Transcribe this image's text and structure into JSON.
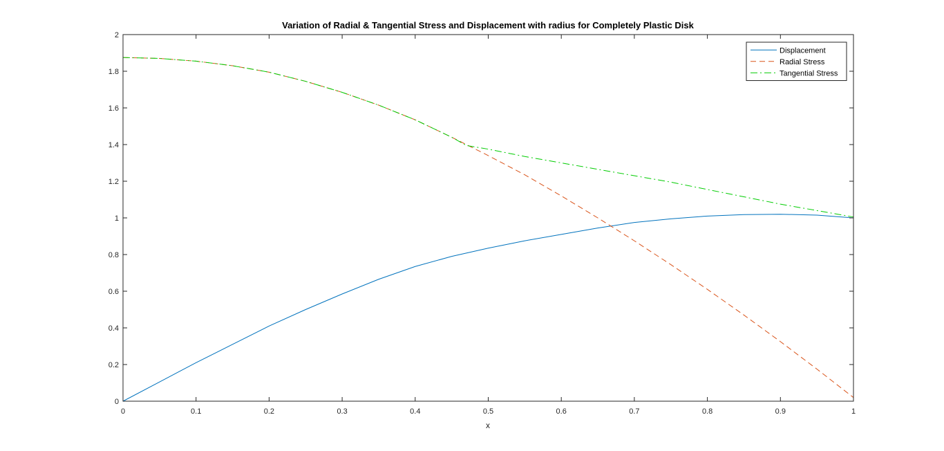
{
  "chart_data": {
    "type": "line",
    "title": "Variation of Radial & Tangential Stress and Displacement with radius for Completely Plastic Disk",
    "xlabel": "x",
    "ylabel": "",
    "xlim": [
      0,
      1
    ],
    "ylim": [
      0,
      2
    ],
    "xticks": [
      0,
      0.1,
      0.2,
      0.3,
      0.4,
      0.5,
      0.6,
      0.7,
      0.8,
      0.9,
      1
    ],
    "xtick_labels": [
      "0",
      "0.1",
      "0.2",
      "0.3",
      "0.4",
      "0.5",
      "0.6",
      "0.7",
      "0.8",
      "0.9",
      "1"
    ],
    "yticks": [
      0,
      0.2,
      0.4,
      0.6,
      0.8,
      1,
      1.2,
      1.4,
      1.6,
      1.8,
      2
    ],
    "ytick_labels": [
      "0",
      "0.2",
      "0.4",
      "0.6",
      "0.8",
      "1",
      "1.2",
      "1.4",
      "1.6",
      "1.8",
      "2"
    ],
    "grid": false,
    "legend_position": "top-right",
    "series": [
      {
        "name": "Displacement",
        "color": "#0072BD",
        "style": "solid",
        "x": [
          0,
          0.05,
          0.1,
          0.15,
          0.2,
          0.25,
          0.3,
          0.35,
          0.4,
          0.45,
          0.5,
          0.55,
          0.6,
          0.65,
          0.7,
          0.75,
          0.8,
          0.85,
          0.9,
          0.95,
          1
        ],
        "y": [
          0,
          0.105,
          0.21,
          0.31,
          0.41,
          0.5,
          0.585,
          0.665,
          0.735,
          0.79,
          0.835,
          0.875,
          0.91,
          0.945,
          0.975,
          0.995,
          1.01,
          1.018,
          1.02,
          1.015,
          1.0
        ]
      },
      {
        "name": "Radial Stress",
        "color": "#D95319",
        "style": "dashed",
        "x": [
          0,
          0.05,
          0.1,
          0.15,
          0.2,
          0.25,
          0.3,
          0.35,
          0.4,
          0.45,
          0.47,
          0.5,
          0.55,
          0.6,
          0.65,
          0.7,
          0.75,
          0.8,
          0.85,
          0.9,
          0.95,
          1
        ],
        "y": [
          1.875,
          1.87,
          1.855,
          1.83,
          1.795,
          1.745,
          1.685,
          1.615,
          1.535,
          1.44,
          1.4,
          1.34,
          1.235,
          1.12,
          1.0,
          0.875,
          0.745,
          0.61,
          0.47,
          0.325,
          0.175,
          0.02
        ]
      },
      {
        "name": "Tangential Stress",
        "color": "#00CC00",
        "style": "dashdot",
        "x": [
          0,
          0.05,
          0.1,
          0.15,
          0.2,
          0.25,
          0.3,
          0.35,
          0.4,
          0.45,
          0.47,
          0.5,
          0.55,
          0.6,
          0.65,
          0.7,
          0.75,
          0.8,
          0.85,
          0.9,
          0.95,
          1
        ],
        "y": [
          1.875,
          1.87,
          1.855,
          1.83,
          1.795,
          1.745,
          1.685,
          1.615,
          1.535,
          1.44,
          1.395,
          1.375,
          1.335,
          1.3,
          1.265,
          1.23,
          1.195,
          1.155,
          1.115,
          1.075,
          1.04,
          1.005
        ]
      }
    ]
  }
}
